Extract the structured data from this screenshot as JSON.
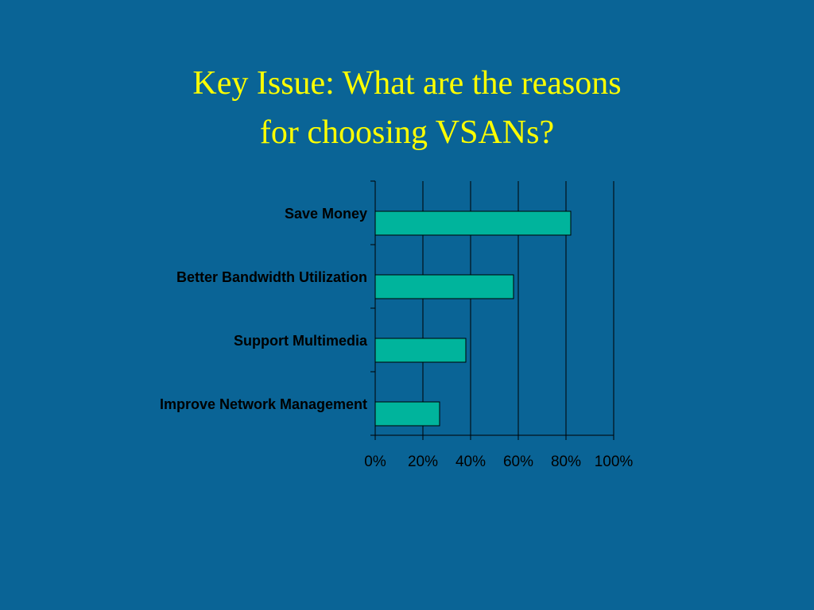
{
  "chart_data": {
    "type": "bar",
    "orientation": "horizontal",
    "title": [
      "Key Issue:  What are the reasons",
      "for choosing VSANs?"
    ],
    "categories": [
      "Save Money",
      "Better Bandwidth Utilization",
      "Support Multimedia",
      "Improve Network Management"
    ],
    "values": [
      82,
      58,
      38,
      27
    ],
    "color": "#00b49c",
    "xlim": [
      0,
      100
    ],
    "xticks": [
      {
        "value": 0,
        "label": "0%"
      },
      {
        "value": 20,
        "label": "20%"
      },
      {
        "value": 40,
        "label": "40%"
      },
      {
        "value": 60,
        "label": "60%"
      },
      {
        "value": 80,
        "label": "80%"
      },
      {
        "value": 100,
        "label": "100%"
      }
    ],
    "grid": true
  }
}
